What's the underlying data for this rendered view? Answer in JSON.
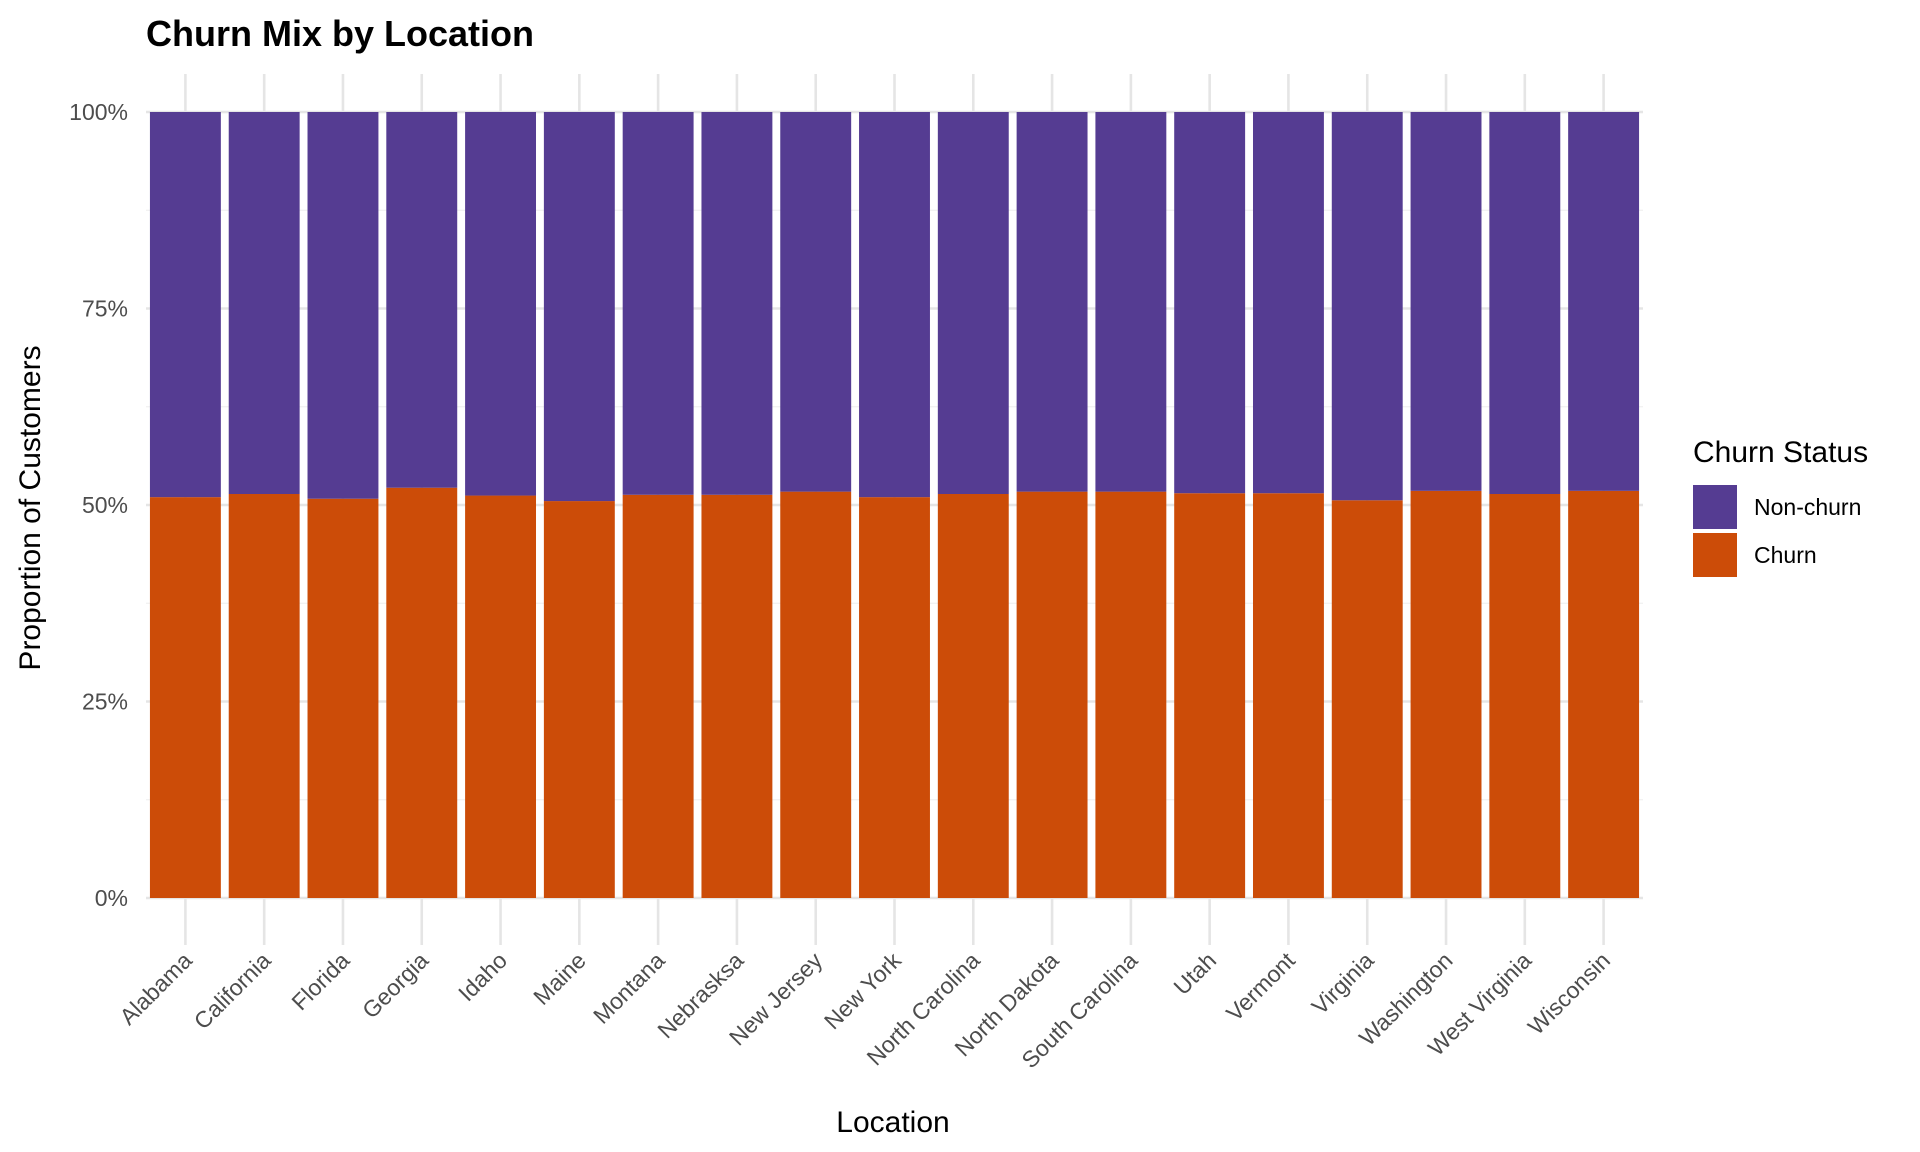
{
  "chart_data": {
    "type": "bar",
    "stacked": true,
    "normalized": true,
    "title": "Churn Mix by Location",
    "xlabel": "Location",
    "ylabel": "Proportion of Customers",
    "ylim": [
      0,
      1
    ],
    "yticks": [
      0,
      0.25,
      0.5,
      0.75,
      1
    ],
    "ytick_labels": [
      "0%",
      "25%",
      "50%",
      "75%",
      "100%"
    ],
    "grid": true,
    "categories": [
      "Alabama",
      "California",
      "Florida",
      "Georgia",
      "Idaho",
      "Maine",
      "Montana",
      "Nebrasksa",
      "New Jersey",
      "New York",
      "North Carolina",
      "North Dakota",
      "South Carolina",
      "Utah",
      "Vermont",
      "Virginia",
      "Washington",
      "West Virginia",
      "Wisconsin"
    ],
    "series": [
      {
        "name": "Churn",
        "color": "#cc4c08",
        "values": [
          0.51,
          0.514,
          0.508,
          0.522,
          0.512,
          0.505,
          0.513,
          0.513,
          0.517,
          0.51,
          0.514,
          0.517,
          0.517,
          0.515,
          0.515,
          0.506,
          0.518,
          0.514,
          0.518
        ]
      },
      {
        "name": "Non-churn",
        "color": "#553c92",
        "values": [
          0.49,
          0.486,
          0.492,
          0.478,
          0.488,
          0.495,
          0.487,
          0.487,
          0.483,
          0.49,
          0.486,
          0.483,
          0.483,
          0.485,
          0.485,
          0.494,
          0.482,
          0.486,
          0.482
        ]
      }
    ],
    "legend": {
      "title": "Churn Status",
      "position": "right",
      "order": [
        "Non-churn",
        "Churn"
      ]
    }
  }
}
